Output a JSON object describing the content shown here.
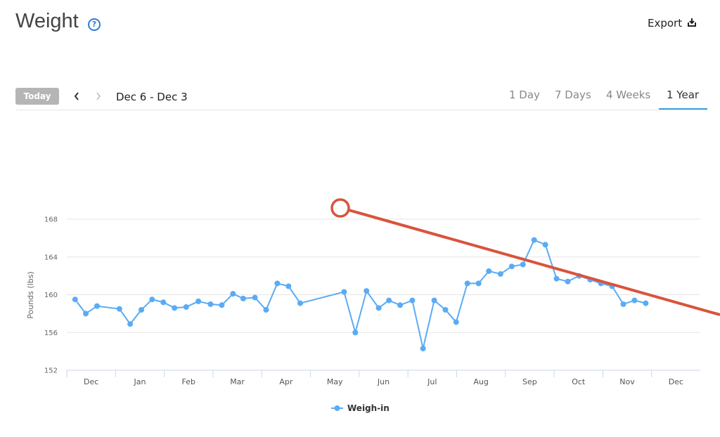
{
  "header": {
    "title": "Weight",
    "help": "?",
    "export": "Export"
  },
  "toolbar": {
    "today": "Today",
    "range": "Dec 6 - Dec 3",
    "tabs": [
      "1 Day",
      "7 Days",
      "4 Weeks",
      "1 Year"
    ],
    "active_tab": 3
  },
  "chart_data": {
    "type": "line",
    "ylabel": "Pounds (lbs)",
    "xlim": [
      0,
      13
    ],
    "xticks": [
      {
        "value": 0.5,
        "label": "Dec"
      },
      {
        "value": 1.5,
        "label": "Jan"
      },
      {
        "value": 2.5,
        "label": "Feb"
      },
      {
        "value": 3.5,
        "label": "Mar"
      },
      {
        "value": 4.5,
        "label": "Apr"
      },
      {
        "value": 5.5,
        "label": "May"
      },
      {
        "value": 6.5,
        "label": "Jun"
      },
      {
        "value": 7.5,
        "label": "Jul"
      },
      {
        "value": 8.5,
        "label": "Aug"
      },
      {
        "value": 9.5,
        "label": "Sep"
      },
      {
        "value": 10.5,
        "label": "Oct"
      },
      {
        "value": 11.5,
        "label": "Nov"
      },
      {
        "value": 12.5,
        "label": "Dec"
      }
    ],
    "ylim": [
      152,
      168
    ],
    "yticks": [
      152,
      156,
      160,
      164,
      168
    ],
    "grid": true,
    "series": [
      {
        "name": "Weigh-in",
        "color": "#5aabf5",
        "x": [
          0.17,
          0.39,
          0.62,
          1.08,
          1.3,
          1.53,
          1.75,
          1.98,
          2.21,
          2.45,
          2.7,
          2.95,
          3.18,
          3.41,
          3.62,
          3.86,
          4.09,
          4.32,
          4.55,
          4.79,
          5.69,
          5.92,
          6.15,
          6.4,
          6.61,
          6.84,
          7.09,
          7.31,
          7.54,
          7.77,
          7.99,
          8.22,
          8.45,
          8.66,
          8.9,
          9.13,
          9.36,
          9.59,
          9.82,
          10.05,
          10.28,
          10.51,
          10.74,
          10.96,
          11.19,
          11.42,
          11.65,
          11.88
        ],
        "values": [
          159.5,
          158.0,
          158.8,
          158.5,
          156.9,
          158.4,
          159.5,
          159.2,
          158.6,
          158.7,
          159.3,
          159.0,
          158.9,
          160.1,
          159.6,
          159.7,
          158.4,
          161.2,
          160.9,
          159.1,
          160.3,
          156.0,
          160.4,
          158.6,
          159.4,
          158.9,
          159.4,
          154.3,
          159.4,
          158.4,
          157.1,
          161.2,
          161.2,
          162.5,
          162.2,
          163.0,
          163.2,
          165.8,
          165.3,
          161.7,
          161.4,
          162.0,
          161.6,
          161.2,
          160.9,
          159.0,
          159.4,
          159.1
        ]
      }
    ]
  }
}
